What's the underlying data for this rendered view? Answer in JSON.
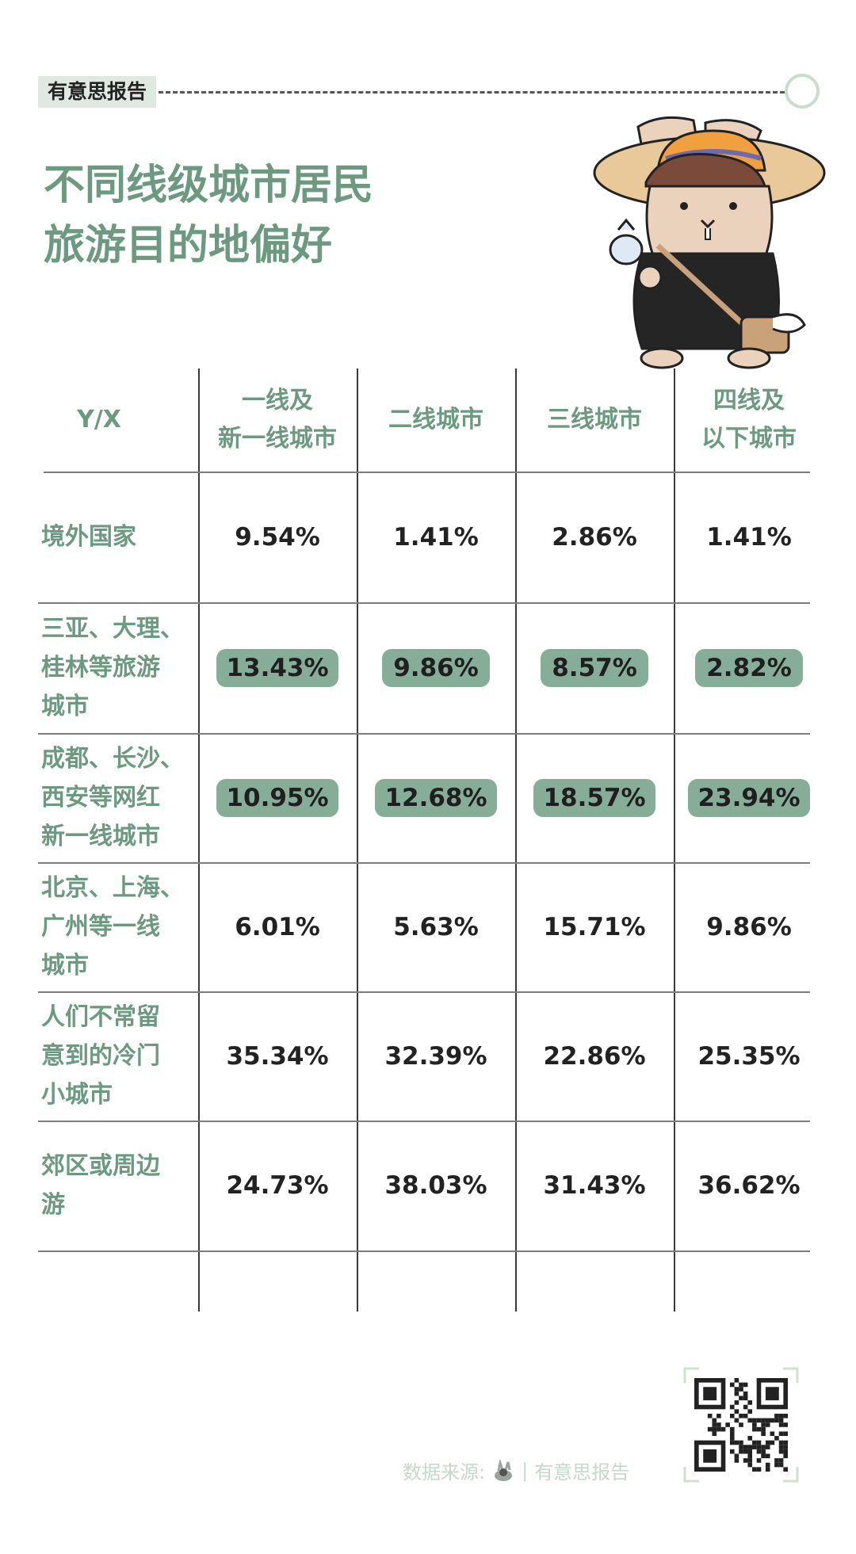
{
  "header": {
    "brand_tag": "有意思报告",
    "title_line1": "不同线级城市居民",
    "title_line2": "旅游目的地偏好"
  },
  "colors": {
    "accent": "#6b9a80",
    "pill": "#86ad97",
    "tag_bg": "#dfe9e1",
    "source_text": "#c5d8cb"
  },
  "chart_data": {
    "type": "table",
    "corner_label": "Y/X",
    "columns": [
      [
        "一线及",
        "新一线城市"
      ],
      [
        "二线城市"
      ],
      [
        "三线城市"
      ],
      [
        "四线及",
        "以下城市"
      ]
    ],
    "rows": [
      {
        "label": [
          "境外国家"
        ],
        "values": [
          "9.54%",
          "1.41%",
          "2.86%",
          "1.41%"
        ],
        "highlight": false
      },
      {
        "label": [
          "三亚、大理、",
          "桂林等旅游",
          "城市"
        ],
        "values": [
          "13.43%",
          "9.86%",
          "8.57%",
          "2.82%"
        ],
        "highlight": true
      },
      {
        "label": [
          "成都、长沙、",
          "西安等网红",
          "新一线城市"
        ],
        "values": [
          "10.95%",
          "12.68%",
          "18.57%",
          "23.94%"
        ],
        "highlight": true
      },
      {
        "label": [
          "北京、上海、",
          "广州等一线",
          "城市"
        ],
        "values": [
          "6.01%",
          "5.63%",
          "15.71%",
          "9.86%"
        ],
        "highlight": false
      },
      {
        "label": [
          "人们不常留",
          "意到的冷门",
          "小城市"
        ],
        "values": [
          "35.34%",
          "32.39%",
          "22.86%",
          "25.35%"
        ],
        "highlight": false
      },
      {
        "label": [
          "郊区或周边",
          "游"
        ],
        "values": [
          "24.73%",
          "38.03%",
          "31.43%",
          "36.62%"
        ],
        "highlight": false
      }
    ]
  },
  "footer": {
    "source_label": "数据来源:",
    "source_sep": "|",
    "source_name": "有意思报告",
    "qr_icon": "qr-code-icon"
  }
}
